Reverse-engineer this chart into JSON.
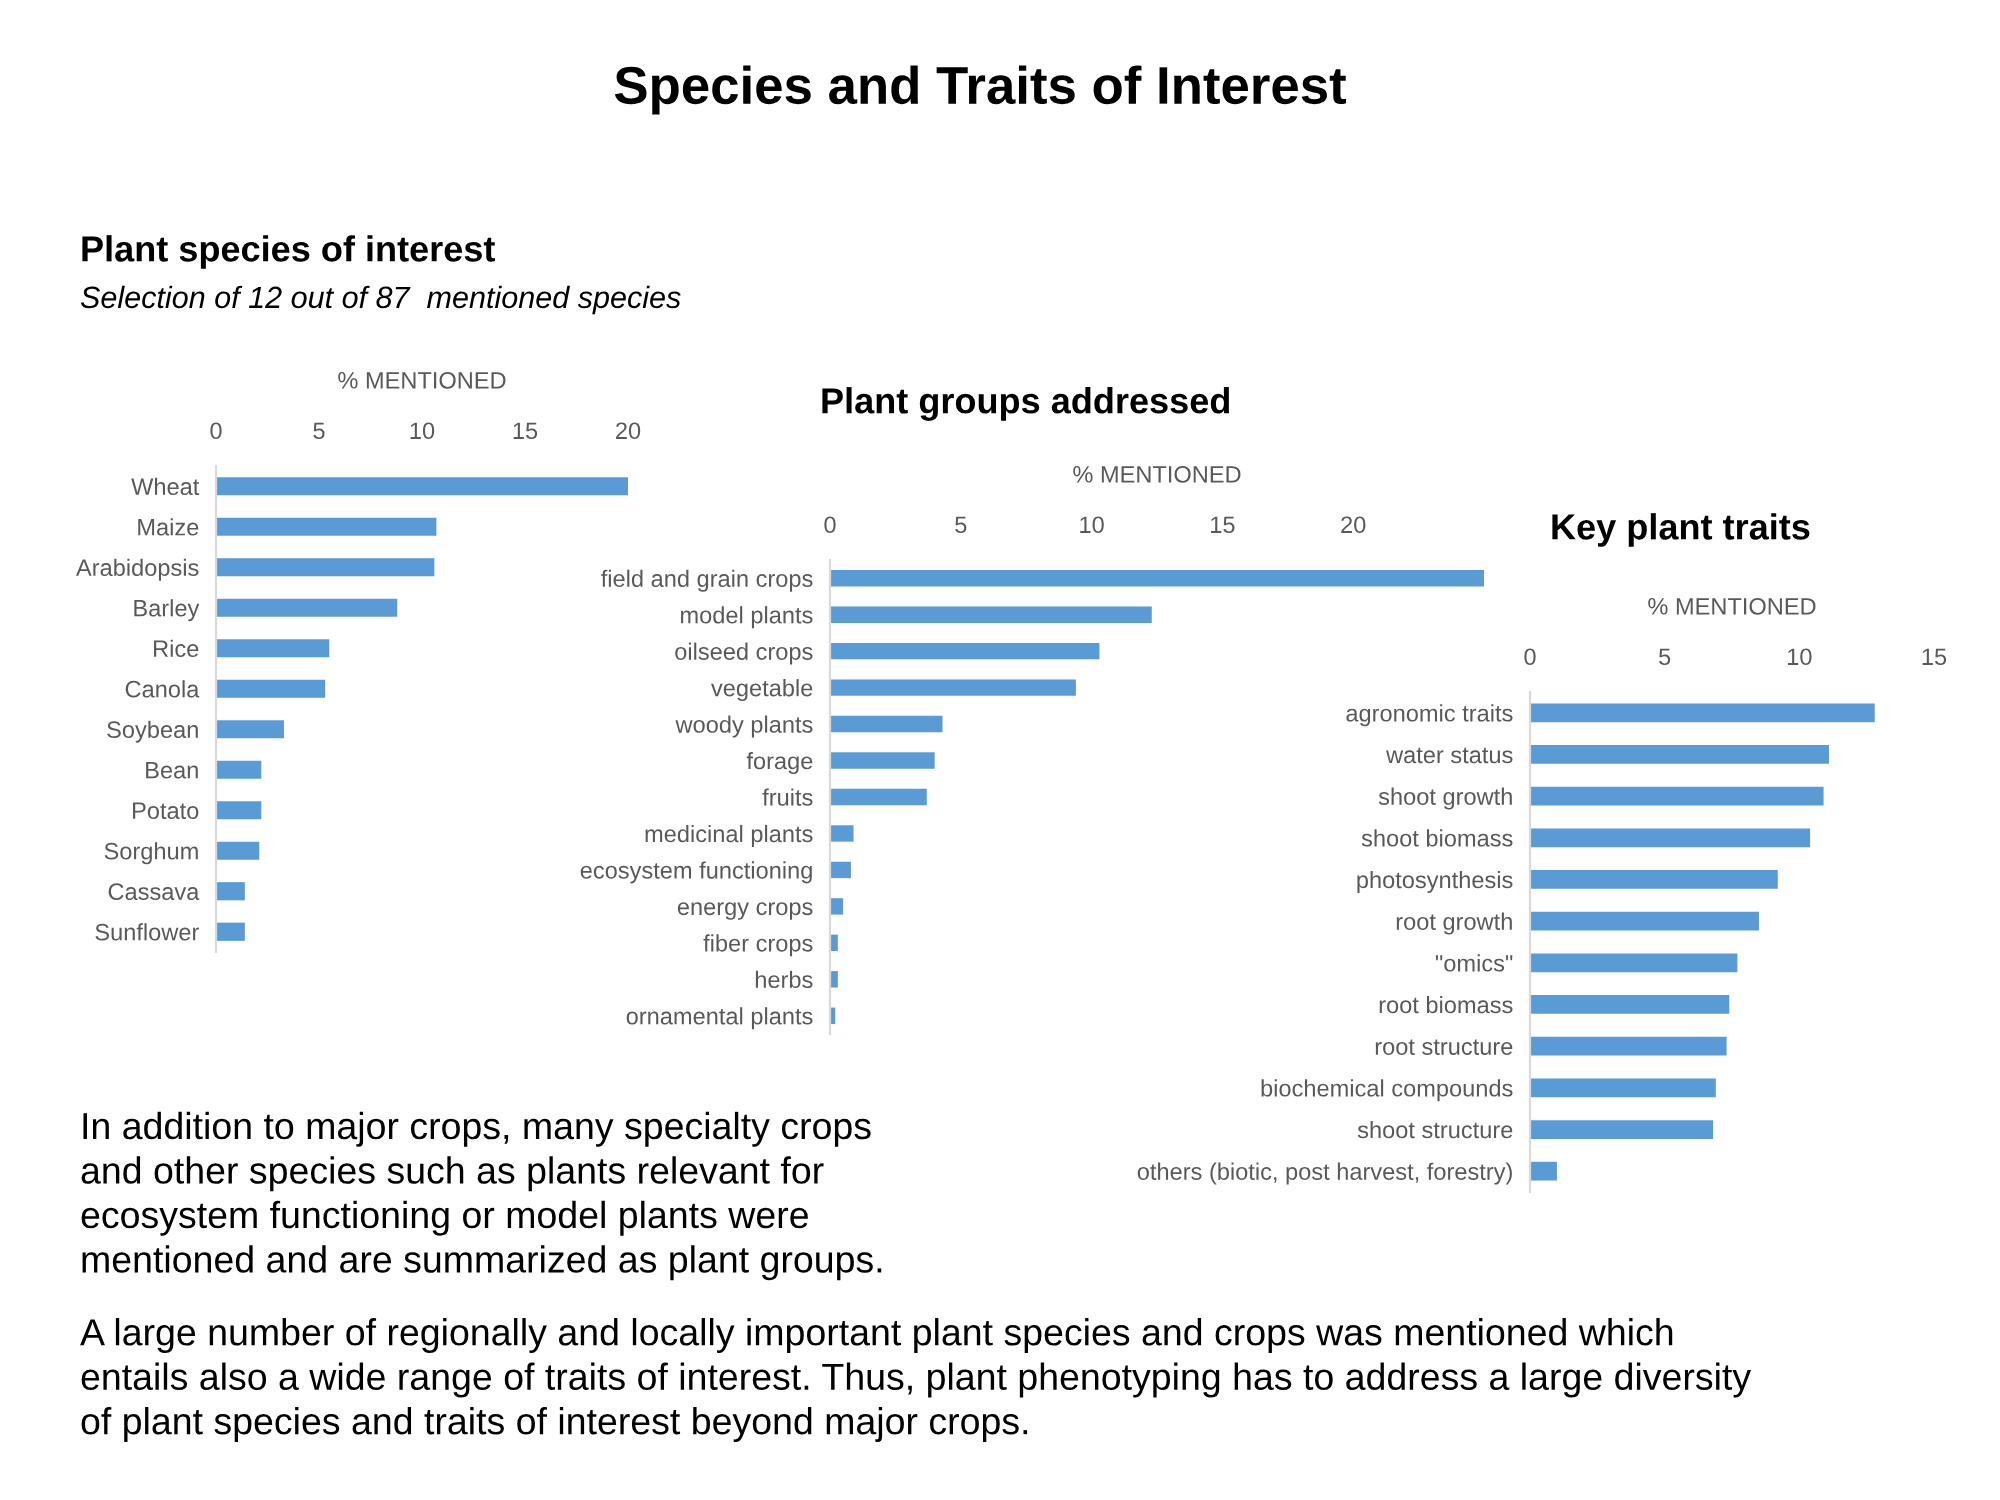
{
  "chart_data": [
    {
      "type": "bar",
      "orientation": "horizontal",
      "title": "Plant species of interest",
      "subtitle": "Selection of 12 out of 87  mentioned species",
      "xlabel": "% MENTIONED",
      "categories": [
        "Wheat",
        "Maize",
        "Arabidopsis",
        "Barley",
        "Rice",
        "Canola",
        "Soybean",
        "Bean",
        "Potato",
        "Sorghum",
        "Cassava",
        "Sunflower"
      ],
      "values": [
        20.0,
        10.7,
        10.6,
        8.8,
        5.5,
        5.3,
        3.3,
        2.2,
        2.2,
        2.1,
        1.4,
        1.4
      ],
      "color": "#5b9bd5",
      "xlim": [
        0,
        20
      ],
      "xticks": [
        0,
        5,
        10,
        15,
        20
      ],
      "grid": false,
      "annotations": [
        "Species and Traits of Interest"
      ]
    },
    {
      "type": "bar",
      "orientation": "horizontal",
      "title": "Plant groups addressed",
      "xlabel": "% MENTIONED",
      "categories": [
        "field and grain crops",
        "model plants",
        "oilseed crops",
        "vegetable",
        "woody plants",
        "forage",
        "fruits",
        "medicinal plants",
        "ecosystem functioning",
        "energy crops",
        "fiber crops",
        "herbs",
        "ornamental plants"
      ],
      "values": [
        25.0,
        12.3,
        10.3,
        9.4,
        4.3,
        4.0,
        3.7,
        0.9,
        0.8,
        0.5,
        0.3,
        0.3,
        0.2
      ],
      "color": "#5b9bd5",
      "xlim": [
        0,
        25
      ],
      "xticks": [
        0,
        5,
        10,
        15,
        20
      ],
      "grid": false,
      "annotations": [
        "In addition to major crops, many specialty crops\nand other species such as plants relevant for\necosystem functioning or model plants were\nmentioned and are summarized as plant groups."
      ]
    },
    {
      "type": "bar",
      "orientation": "horizontal",
      "title": "Key plant traits",
      "xlabel": "% MENTIONED",
      "categories": [
        "agronomic traits",
        "water status",
        "shoot growth",
        "shoot biomass",
        "photosynthesis",
        "root growth",
        "\"omics\"",
        "root biomass",
        "root structure",
        "biochemical compounds",
        "shoot structure",
        "others (biotic, post harvest, forestry)"
      ],
      "values": [
        12.8,
        11.1,
        10.9,
        10.4,
        9.2,
        8.5,
        7.7,
        7.4,
        7.3,
        6.9,
        6.8,
        1.0
      ],
      "color": "#5b9bd5",
      "xlim": [
        0,
        15
      ],
      "xticks": [
        0,
        5,
        10,
        15
      ],
      "grid": false,
      "annotations": [
        "A large number of regionally and locally important plant species and crops was mentioned which\nentails also a wide range of traits of interest. Thus, plant phenotyping has to address a large diversity\nof plant species and traits of interest beyond major crops."
      ]
    }
  ]
}
